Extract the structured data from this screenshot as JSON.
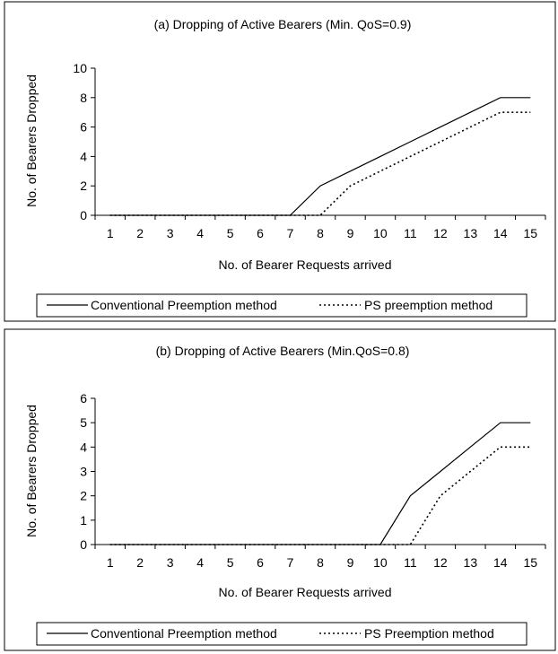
{
  "chart_data": [
    {
      "type": "line",
      "title": "(a) Dropping of Active Bearers (Min. QoS=0.9)",
      "xlabel": "No. of Bearer Requests arrived",
      "ylabel": "No. of Bearers Dropped",
      "categories": [
        "1",
        "2",
        "3",
        "4",
        "5",
        "6",
        "7",
        "8",
        "9",
        "10",
        "11",
        "12",
        "13",
        "14",
        "15"
      ],
      "yticks": [
        "0",
        "2",
        "4",
        "6",
        "8",
        "10"
      ],
      "ylim": [
        0,
        10
      ],
      "grid": false,
      "legend": "bottom",
      "series": [
        {
          "name": "Conventional Preemption method",
          "style": "solid",
          "values": [
            0,
            0,
            0,
            0,
            0,
            0,
            0,
            2,
            3,
            4,
            5,
            6,
            7,
            8,
            8
          ]
        },
        {
          "name": "PS preemption method",
          "style": "dotted",
          "values": [
            0,
            0,
            0,
            0,
            0,
            0,
            0,
            0,
            2,
            3,
            4,
            5,
            6,
            7,
            7
          ]
        }
      ]
    },
    {
      "type": "line",
      "title": "(b) Dropping of Active Bearers (Min.QoS=0.8)",
      "xlabel": "No. of Bearer Requests arrived",
      "ylabel": "No. of Bearers Dropped",
      "categories": [
        "1",
        "2",
        "3",
        "4",
        "5",
        "6",
        "7",
        "8",
        "9",
        "10",
        "11",
        "12",
        "13",
        "14",
        "15"
      ],
      "yticks": [
        "0",
        "1",
        "2",
        "3",
        "4",
        "5",
        "6"
      ],
      "ylim": [
        0,
        6
      ],
      "grid": false,
      "legend": "bottom",
      "series": [
        {
          "name": "Conventional Preemption method",
          "style": "solid",
          "values": [
            0,
            0,
            0,
            0,
            0,
            0,
            0,
            0,
            0,
            0,
            2,
            3,
            4,
            5,
            5
          ]
        },
        {
          "name": "PS Preemption method",
          "style": "dotted",
          "values": [
            0,
            0,
            0,
            0,
            0,
            0,
            0,
            0,
            0,
            0,
            0,
            2,
            3,
            4,
            4
          ]
        }
      ]
    }
  ]
}
